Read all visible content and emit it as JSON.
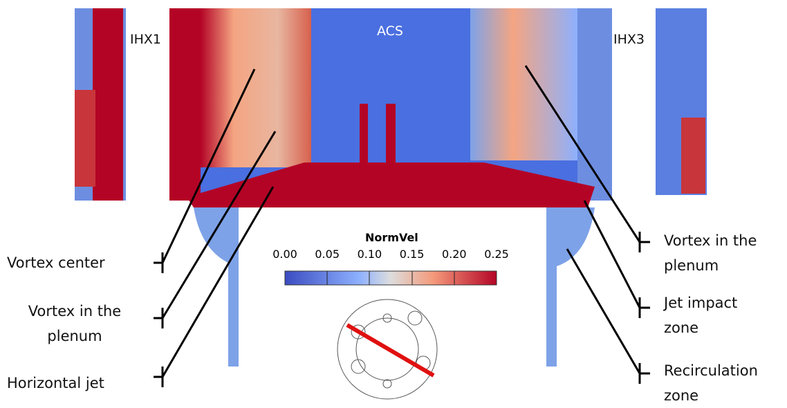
{
  "region_labels": [
    "IHX1",
    "ACS",
    "IHX3"
  ],
  "colorbar": {
    "title": "NormVel",
    "ticks": [
      "0.00",
      "0.05",
      "0.10",
      "0.15",
      "0.20",
      "0.25"
    ]
  },
  "annotations_left": [
    "Vortex center",
    "Vortex in the plenum",
    "Horizontal jet"
  ],
  "annotations_right": [
    "Vortex in the plenum",
    "Jet impact zone",
    "Recirculation zone"
  ]
}
